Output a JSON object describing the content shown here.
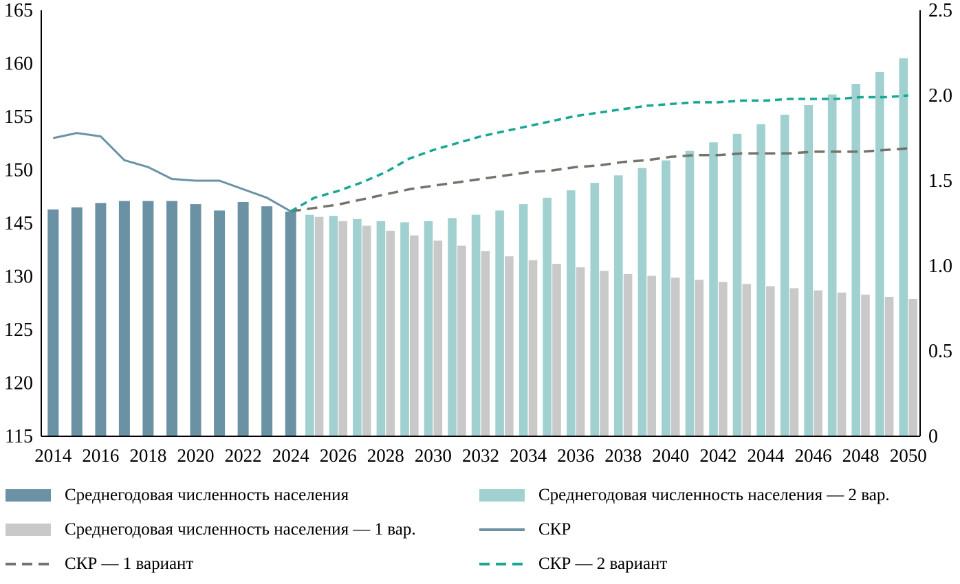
{
  "chart_data": {
    "type": "bar",
    "subtype": "combo-bar-line-dual-axis",
    "title": "",
    "years": [
      2014,
      2015,
      2016,
      2017,
      2018,
      2019,
      2020,
      2021,
      2022,
      2023,
      2024,
      2025,
      2026,
      2027,
      2028,
      2029,
      2030,
      2031,
      2032,
      2033,
      2034,
      2035,
      2036,
      2037,
      2038,
      2039,
      2040,
      2041,
      2042,
      2043,
      2044,
      2045,
      2046,
      2047,
      2048,
      2049,
      2050
    ],
    "x_tick_years": [
      2014,
      2016,
      2018,
      2020,
      2022,
      2024,
      2026,
      2028,
      2030,
      2032,
      2034,
      2036,
      2038,
      2040,
      2042,
      2044,
      2046,
      2048,
      2050
    ],
    "x_tick_labels": [
      "2014",
      "2016",
      "2018",
      "2020",
      "2022",
      "2024",
      "2026",
      "2028",
      "2030",
      "2032",
      "2034",
      "2036",
      "2038",
      "2040",
      "2042",
      "2044",
      "2046",
      "2048",
      "2050"
    ],
    "left_axis": {
      "tick_values": [
        115,
        120,
        125,
        130,
        145,
        150,
        155,
        160,
        165
      ],
      "tick_labels": [
        "115",
        "120",
        "125",
        "130",
        "145",
        "150",
        "155",
        "160",
        "165"
      ],
      "scale_note": "broken scale as printed: equal spacing between ticks, jump 130 to 145"
    },
    "right_axis": {
      "tick_values": [
        0,
        0.5,
        1.0,
        1.5,
        2.0,
        2.5
      ],
      "tick_labels": [
        "0",
        "0.5",
        "1.0",
        "1.5",
        "2.0",
        "2.5"
      ],
      "range": [
        0,
        2.5
      ]
    },
    "grid": false,
    "legend_position": "bottom",
    "series": [
      {
        "name": "Среднегодовая численность населения",
        "type": "bar",
        "axis": "left",
        "bar_slot": "center",
        "color": "#6b92a4",
        "start_year": 2014,
        "values": [
          146.3,
          146.5,
          146.9,
          147.1,
          147.1,
          147.1,
          146.8,
          146.2,
          147.0,
          146.6,
          146.1
        ]
      },
      {
        "name": "Среднегодовая численность населения — 2 вар.",
        "type": "bar",
        "axis": "left",
        "bar_slot": "left",
        "color": "#a0d0d0",
        "start_year": 2025,
        "values": [
          145.8,
          145.7,
          145.4,
          145.2,
          145.1,
          145.2,
          145.5,
          145.8,
          146.2,
          146.8,
          147.4,
          148.1,
          148.8,
          149.5,
          150.2,
          150.9,
          151.8,
          152.6,
          153.4,
          154.3,
          155.2,
          156.1,
          157.1,
          158.1,
          159.2,
          160.5
        ]
      },
      {
        "name": "Среднегодовая численность населения — 1 вар.",
        "type": "bar",
        "axis": "left",
        "bar_slot": "right",
        "color": "#c9c9c9",
        "start_year": 2025,
        "values": [
          145.6,
          145.2,
          144.3,
          142.9,
          141.6,
          140.1,
          138.7,
          137.2,
          135.7,
          134.6,
          133.6,
          132.6,
          131.6,
          130.7,
          130.2,
          129.9,
          129.7,
          129.5,
          129.3,
          129.1,
          128.9,
          128.7,
          128.5,
          128.3,
          128.1,
          127.9
        ]
      },
      {
        "name": "СКР",
        "type": "line",
        "style": "solid",
        "axis": "right",
        "color": "#6b92a4",
        "stroke_width": 3,
        "start_year": 2014,
        "values": [
          1.75,
          1.78,
          1.76,
          1.62,
          1.58,
          1.51,
          1.5,
          1.5,
          1.45,
          1.4,
          1.32
        ]
      },
      {
        "name": "СКР — 1 вариант",
        "type": "line",
        "style": "dashed",
        "dash": "15 9",
        "axis": "right",
        "color": "#73736a",
        "stroke_width": 3.5,
        "start_year": 2024,
        "values": [
          1.32,
          1.34,
          1.36,
          1.39,
          1.42,
          1.45,
          1.47,
          1.49,
          1.51,
          1.53,
          1.55,
          1.56,
          1.58,
          1.59,
          1.61,
          1.62,
          1.64,
          1.65,
          1.65,
          1.66,
          1.66,
          1.66,
          1.67,
          1.67,
          1.67,
          1.68,
          1.69
        ]
      },
      {
        "name": "СКР — 2 вариант",
        "type": "line",
        "style": "dashed",
        "dash": "10 7",
        "axis": "right",
        "color": "#16a795",
        "stroke_width": 3.5,
        "start_year": 2024,
        "values": [
          1.32,
          1.4,
          1.44,
          1.49,
          1.55,
          1.63,
          1.68,
          1.72,
          1.76,
          1.79,
          1.82,
          1.85,
          1.88,
          1.9,
          1.92,
          1.94,
          1.95,
          1.96,
          1.96,
          1.97,
          1.97,
          1.98,
          1.98,
          1.98,
          1.99,
          1.99,
          2.0
        ]
      }
    ],
    "colors": {
      "population_historical": "#6b92a4",
      "population_variant2": "#a0d0d0",
      "population_variant1": "#c9c9c9",
      "tfr_historical": "#6b92a4",
      "tfr_variant1": "#73736a",
      "tfr_variant2": "#16a795",
      "axis": "#000000"
    }
  },
  "legend": {
    "items": [
      {
        "label": "Среднегодовая численность населения",
        "swatch": "bar",
        "color": "#6b92a4"
      },
      {
        "label": "Среднегодовая численность населения — 2 вар.",
        "swatch": "bar",
        "color": "#a0d0d0"
      },
      {
        "label": "Среднегодовая численность населения — 1 вар.",
        "swatch": "bar",
        "color": "#c9c9c9"
      },
      {
        "label": "СКР",
        "swatch": "line-solid",
        "color": "#6b92a4"
      },
      {
        "label": "СКР — 1 вариант",
        "swatch": "line-dashed",
        "color": "#73736a"
      },
      {
        "label": "СКР — 2 вариант",
        "swatch": "line-dashed",
        "color": "#16a795"
      }
    ]
  }
}
